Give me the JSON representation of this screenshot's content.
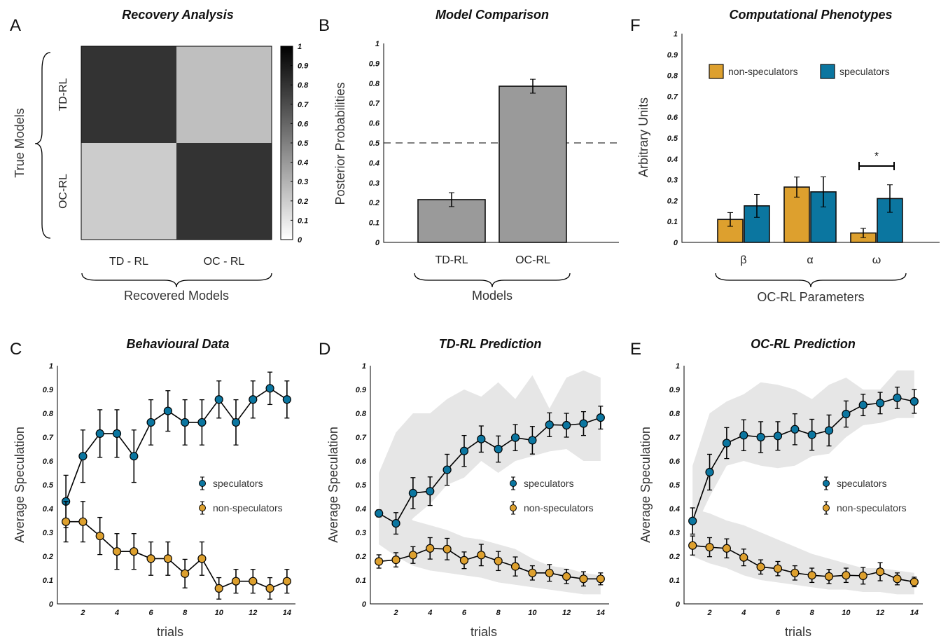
{
  "colors": {
    "speculators": "#0b76a0",
    "non_speculators": "#dda02e",
    "gray_bar": "#9a9a9a",
    "band": "#e6e6e6"
  },
  "panels": {
    "A": {
      "letter": "A",
      "title": "Recovery Analysis",
      "ylabel": "True Models",
      "xlabel": "Recovered Models"
    },
    "B": {
      "letter": "B",
      "title": "Model Comparison",
      "ylabel": "Posterior Probabilities",
      "xlabel": "Models"
    },
    "F": {
      "letter": "F",
      "title": "Computational Phenotypes",
      "ylabel": "Arbitrary Units",
      "xlabel": "OC-RL Parameters"
    },
    "C": {
      "letter": "C",
      "title": "Behavioural Data",
      "ylabel": "Average Speculation",
      "xlabel": "trials"
    },
    "D": {
      "letter": "D",
      "title": "TD-RL Prediction",
      "ylabel": "Average Speculation",
      "xlabel": "trials"
    },
    "E": {
      "letter": "E",
      "title": "OC-RL Prediction",
      "ylabel": "Average Speculation",
      "xlabel": "trials"
    }
  },
  "legend": {
    "speculators": "speculators",
    "non_speculators": "non-speculators",
    "significance": "*"
  },
  "chart_data": [
    {
      "panel": "A",
      "type": "heatmap",
      "row_labels": [
        "TD-RL",
        "OC-RL"
      ],
      "col_labels": [
        "TD - RL",
        "OC - RL"
      ],
      "values": [
        [
          0.8,
          0.25
        ],
        [
          0.2,
          0.8
        ]
      ],
      "colorbar": {
        "min": 0,
        "max": 1,
        "ticks": [
          "0",
          "0.1",
          "0.2",
          "0.3",
          "0.4",
          "0.5",
          "0.6",
          "0.7",
          "0.8",
          "0.9",
          "1"
        ]
      }
    },
    {
      "panel": "B",
      "type": "bar",
      "categories": [
        "TD-RL",
        "OC-RL"
      ],
      "values": [
        0.215,
        0.785
      ],
      "errors": [
        0.035,
        0.035
      ],
      "reference_line": 0.5,
      "ylim": [
        0,
        1
      ],
      "yticks": [
        "0",
        "0.1",
        "0.2",
        "0.3",
        "0.4",
        "0.5",
        "0.6",
        "0.7",
        "0.8",
        "0.9",
        "1"
      ]
    },
    {
      "panel": "F",
      "type": "bar",
      "categories": [
        "β",
        "α",
        "ω"
      ],
      "series": [
        {
          "name": "non-speculators",
          "values": [
            0.11,
            0.265,
            0.045
          ],
          "errors": [
            0.033,
            0.048,
            0.022
          ]
        },
        {
          "name": "speculators",
          "values": [
            0.175,
            0.242,
            0.21
          ],
          "errors": [
            0.055,
            0.072,
            0.066
          ]
        }
      ],
      "ylim": [
        0,
        1
      ],
      "yticks": [
        "0",
        "0.1",
        "0.2",
        "0.3",
        "0.4",
        "0.5",
        "0.6",
        "0.7",
        "0.8",
        "0.9",
        "1"
      ]
    },
    {
      "panel": "C",
      "type": "line",
      "x": [
        1,
        2,
        3,
        4,
        5,
        6,
        7,
        8,
        9,
        10,
        11,
        12,
        13,
        14
      ],
      "xticks": [
        "2",
        "4",
        "6",
        "8",
        "10",
        "12",
        "14"
      ],
      "yticks": [
        "0",
        "0.1",
        "0.2",
        "0.3",
        "0.4",
        "0.5",
        "0.6",
        "0.7",
        "0.8",
        "0.9",
        "1"
      ],
      "xlim": [
        0.5,
        14.5
      ],
      "ylim": [
        0,
        1
      ],
      "series": [
        {
          "name": "speculators",
          "values": [
            0.43,
            0.62,
            0.715,
            0.715,
            0.62,
            0.762,
            0.81,
            0.762,
            0.762,
            0.858,
            0.762,
            0.858,
            0.905,
            0.858
          ],
          "errors": [
            0.11,
            0.11,
            0.1,
            0.1,
            0.11,
            0.095,
            0.085,
            0.095,
            0.095,
            0.078,
            0.095,
            0.078,
            0.068,
            0.078
          ]
        },
        {
          "name": "non-speculators",
          "values": [
            0.345,
            0.345,
            0.285,
            0.22,
            0.22,
            0.19,
            0.19,
            0.127,
            0.19,
            0.065,
            0.095,
            0.095,
            0.065,
            0.095
          ],
          "errors": [
            0.085,
            0.085,
            0.078,
            0.075,
            0.075,
            0.07,
            0.07,
            0.06,
            0.07,
            0.045,
            0.05,
            0.05,
            0.045,
            0.05
          ]
        }
      ]
    },
    {
      "panel": "D",
      "type": "line",
      "x": [
        1,
        2,
        3,
        4,
        5,
        6,
        7,
        8,
        9,
        10,
        11,
        12,
        13,
        14
      ],
      "xticks": [
        "2",
        "4",
        "6",
        "8",
        "10",
        "12",
        "14"
      ],
      "yticks": [
        "0",
        "0.1",
        "0.2",
        "0.3",
        "0.4",
        "0.5",
        "0.6",
        "0.7",
        "0.8",
        "0.9",
        "1"
      ],
      "xlim": [
        0.5,
        14.5
      ],
      "ylim": [
        0,
        1
      ],
      "series": [
        {
          "name": "speculators",
          "values": [
            0.38,
            0.338,
            0.465,
            0.473,
            0.563,
            0.642,
            0.692,
            0.65,
            0.698,
            0.687,
            0.752,
            0.75,
            0.757,
            0.782
          ],
          "errors": [
            0.015,
            0.045,
            0.065,
            0.06,
            0.065,
            0.065,
            0.055,
            0.055,
            0.055,
            0.058,
            0.05,
            0.05,
            0.05,
            0.048
          ],
          "band_lower": [
            0.33,
            0.25,
            0.36,
            0.42,
            0.5,
            0.53,
            0.6,
            0.55,
            0.6,
            0.62,
            0.64,
            0.65,
            0.6,
            0.6
          ],
          "band_upper": [
            0.55,
            0.72,
            0.8,
            0.8,
            0.86,
            0.9,
            0.87,
            0.93,
            0.86,
            0.96,
            0.82,
            0.95,
            0.98,
            0.95
          ]
        },
        {
          "name": "non-speculators",
          "values": [
            0.178,
            0.185,
            0.205,
            0.233,
            0.23,
            0.183,
            0.205,
            0.18,
            0.157,
            0.13,
            0.13,
            0.115,
            0.105,
            0.105
          ],
          "errors": [
            0.028,
            0.03,
            0.035,
            0.045,
            0.045,
            0.035,
            0.045,
            0.04,
            0.04,
            0.03,
            0.035,
            0.03,
            0.03,
            0.025
          ],
          "band_lower": [
            0.25,
            0.2,
            0.16,
            0.14,
            0.13,
            0.12,
            0.11,
            0.09,
            0.08,
            0.07,
            0.06,
            0.05,
            0.04,
            0.04
          ],
          "band_upper": [
            0.44,
            0.4,
            0.35,
            0.33,
            0.31,
            0.28,
            0.27,
            0.25,
            0.23,
            0.19,
            0.16,
            0.15,
            0.13,
            0.12
          ]
        }
      ]
    },
    {
      "panel": "E",
      "type": "line",
      "x": [
        1,
        2,
        3,
        4,
        5,
        6,
        7,
        8,
        9,
        10,
        11,
        12,
        13,
        14
      ],
      "xticks": [
        "2",
        "4",
        "6",
        "8",
        "10",
        "12",
        "14"
      ],
      "yticks": [
        "0",
        "0.1",
        "0.2",
        "0.3",
        "0.4",
        "0.5",
        "0.6",
        "0.7",
        "0.8",
        "0.9",
        "1"
      ],
      "xlim": [
        0.5,
        14.5
      ],
      "ylim": [
        0,
        1
      ],
      "series": [
        {
          "name": "speculators",
          "values": [
            0.348,
            0.553,
            0.675,
            0.708,
            0.7,
            0.705,
            0.733,
            0.71,
            0.728,
            0.797,
            0.835,
            0.843,
            0.865,
            0.85
          ],
          "errors": [
            0.055,
            0.075,
            0.065,
            0.065,
            0.065,
            0.06,
            0.065,
            0.065,
            0.065,
            0.055,
            0.045,
            0.045,
            0.045,
            0.05
          ],
          "band_lower": [
            0.3,
            0.45,
            0.58,
            0.6,
            0.58,
            0.57,
            0.58,
            0.62,
            0.63,
            0.7,
            0.75,
            0.76,
            0.78,
            0.78
          ],
          "band_upper": [
            0.58,
            0.8,
            0.85,
            0.88,
            0.93,
            0.92,
            0.9,
            0.86,
            0.92,
            0.95,
            0.9,
            0.9,
            0.98,
            0.98
          ]
        },
        {
          "name": "non-speculators",
          "values": [
            0.245,
            0.238,
            0.233,
            0.195,
            0.155,
            0.148,
            0.13,
            0.12,
            0.115,
            0.12,
            0.118,
            0.135,
            0.105,
            0.092
          ],
          "errors": [
            0.04,
            0.04,
            0.04,
            0.035,
            0.03,
            0.03,
            0.03,
            0.03,
            0.03,
            0.03,
            0.035,
            0.038,
            0.025,
            0.02
          ],
          "band_lower": [
            0.2,
            0.17,
            0.15,
            0.12,
            0.1,
            0.09,
            0.08,
            0.07,
            0.06,
            0.06,
            0.05,
            0.05,
            0.04,
            0.04
          ],
          "band_upper": [
            0.4,
            0.38,
            0.35,
            0.33,
            0.3,
            0.27,
            0.24,
            0.21,
            0.19,
            0.17,
            0.15,
            0.15,
            0.14,
            0.13
          ]
        }
      ]
    }
  ]
}
